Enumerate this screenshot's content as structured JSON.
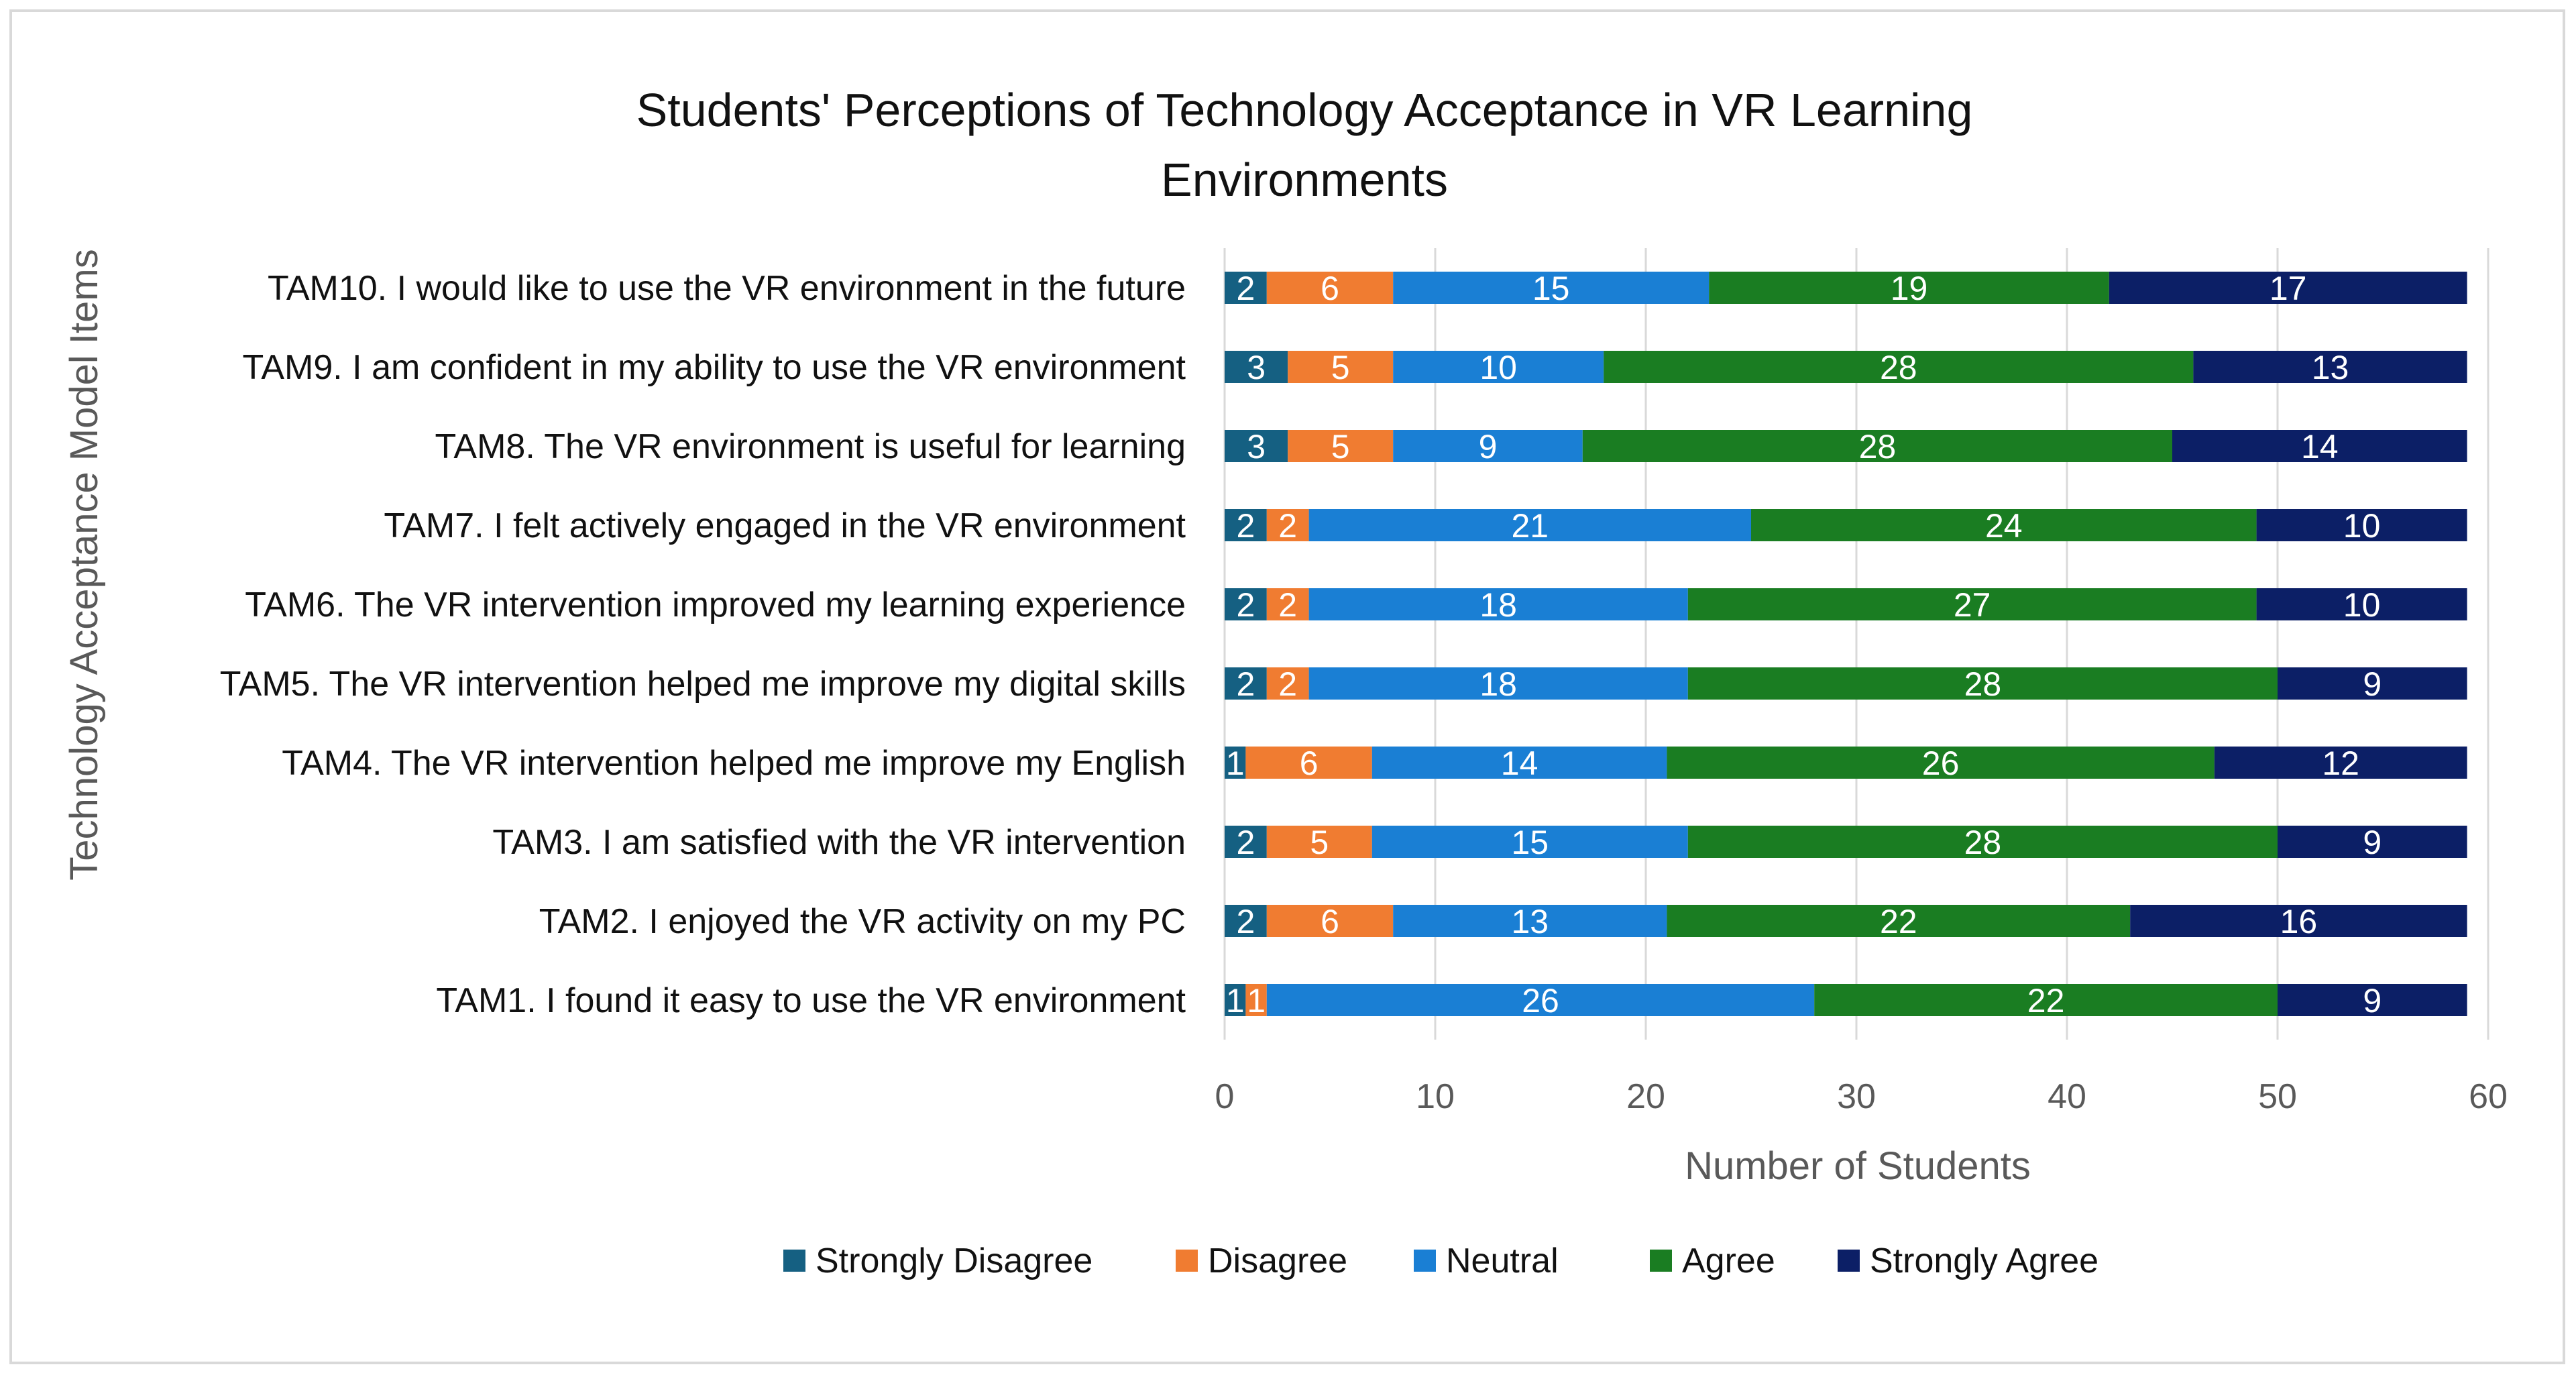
{
  "chart_data": {
    "type": "bar",
    "orientation": "horizontal",
    "stacked": true,
    "title_lines": [
      "Students' Perceptions of Technology  Acceptance  in VR Learning",
      "Environments"
    ],
    "xlabel": "Number of Students",
    "ylabel": "Technology Acceptance Model Items",
    "xlim": [
      0,
      60
    ],
    "xticks": [
      "0",
      "10",
      "20",
      "30",
      "40",
      "50",
      "60"
    ],
    "grid": "vertical",
    "legend_position": "bottom",
    "categories": [
      "TAM1. I found it easy to use the VR environment",
      "TAM2. I enjoyed the VR activity on my PC",
      "TAM3. I am satisfied with the VR intervention",
      "TAM4. The VR intervention helped me improve my English",
      "TAM5. The VR intervention helped me improve my digital skills",
      "TAM6. The VR intervention improved my learning experience",
      "TAM7. I felt actively engaged in the VR environment",
      "TAM8. The VR environment is useful for learning",
      "TAM9. I am confident in my ability to  use the VR environment",
      "TAM10. I would like to use the VR environment in the future"
    ],
    "series": [
      {
        "name": "Strongly Disagree",
        "color": "#156082",
        "values": [
          1,
          2,
          2,
          1,
          2,
          2,
          2,
          3,
          3,
          2
        ]
      },
      {
        "name": "Disagree",
        "color": "#f07c31",
        "values": [
          1,
          6,
          5,
          6,
          2,
          2,
          2,
          5,
          5,
          6
        ]
      },
      {
        "name": "Neutral",
        "color": "#1a7fd4",
        "values": [
          26,
          13,
          15,
          14,
          18,
          18,
          21,
          9,
          10,
          15
        ]
      },
      {
        "name": "Agree",
        "color": "#1a7d22",
        "values": [
          22,
          22,
          28,
          26,
          28,
          27,
          24,
          28,
          28,
          19
        ]
      },
      {
        "name": "Strongly Agree",
        "color": "#0c1f66",
        "values": [
          9,
          16,
          9,
          12,
          9,
          10,
          10,
          14,
          13,
          17
        ]
      }
    ]
  }
}
